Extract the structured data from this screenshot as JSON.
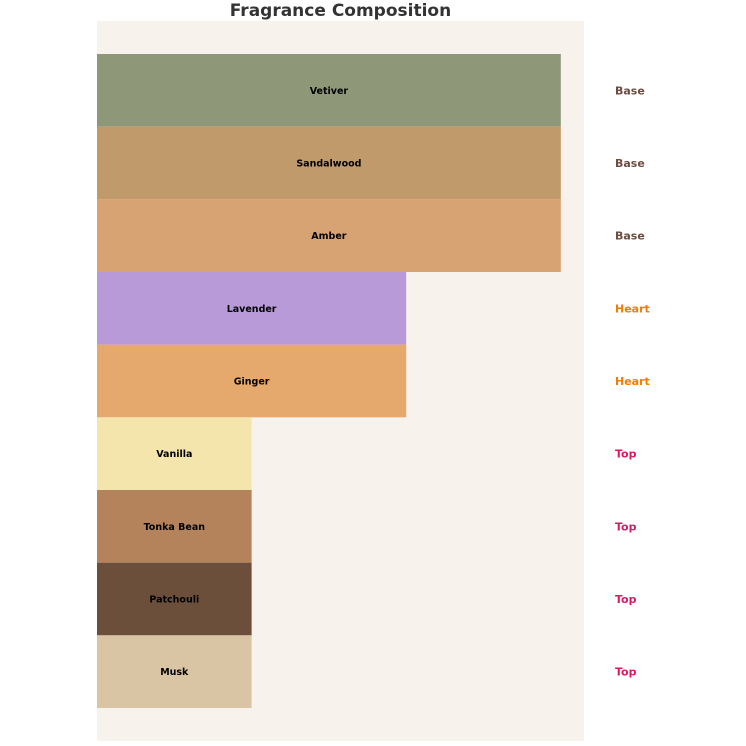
{
  "chart_data": {
    "type": "bar",
    "orientation": "horizontal",
    "title": "Fragrance Composition",
    "xlabel": "",
    "ylabel": "",
    "xlim": [
      0,
      3.15
    ],
    "grid": false,
    "background_color": "#f7f2ec",
    "categories": [
      "Vetiver",
      "Sandalwood",
      "Amber",
      "Lavender",
      "Ginger",
      "Vanilla",
      "Tonka Bean",
      "Patchouli",
      "Musk"
    ],
    "values": [
      3,
      3,
      3,
      2,
      2,
      1,
      1,
      1,
      1
    ],
    "colors": [
      "#8f9779",
      "#c19a6b",
      "#d8a373",
      "#b89ad8",
      "#e5a96d",
      "#f3e5ab",
      "#b5835b",
      "#6b4f3a",
      "#d9c5a3"
    ],
    "tiers": [
      "Base",
      "Base",
      "Base",
      "Heart",
      "Heart",
      "Top",
      "Top",
      "Top",
      "Top"
    ],
    "tier_colors": {
      "Base": "#6d4c41",
      "Heart": "#f57c00",
      "Top": "#d81b60"
    }
  }
}
